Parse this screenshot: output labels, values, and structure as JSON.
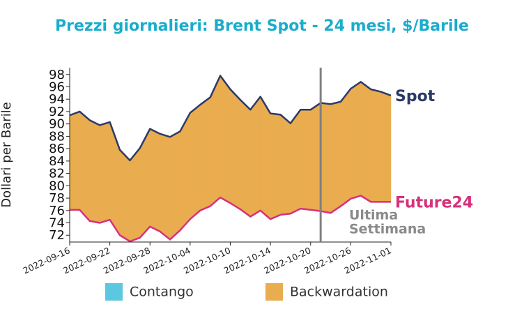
{
  "chart_data": {
    "type": "line",
    "title": "Prezzi giornalieri: Brent Spot - 24 mesi, $/Barile",
    "y_label": "Dollari per Barile",
    "categories": [
      "2022-09-16",
      null,
      null,
      null,
      "2022-09-22",
      null,
      null,
      null,
      "2022-09-28",
      null,
      null,
      null,
      "2022-10-04",
      null,
      null,
      null,
      "2022-10-10",
      null,
      null,
      null,
      "2022-10-14",
      null,
      null,
      null,
      "2022-10-20",
      null,
      null,
      null,
      "2022-10-26",
      null,
      null,
      null,
      "2022-11-01"
    ],
    "series": [
      {
        "name": "Spot",
        "color": "#2b3a67",
        "values": [
          91.4,
          92.0,
          90.6,
          89.8,
          90.3,
          85.8,
          84.1,
          86.1,
          89.2,
          88.4,
          87.9,
          88.8,
          91.8,
          93.1,
          94.3,
          97.8,
          95.6,
          93.9,
          92.3,
          94.4,
          91.7,
          91.5,
          90.1,
          92.3,
          92.3,
          93.4,
          93.2,
          93.6,
          95.7,
          96.8,
          95.6,
          95.2,
          94.6
        ]
      },
      {
        "name": "Future24",
        "color": "#d6317a",
        "values": [
          76.1,
          76.1,
          74.3,
          74.0,
          74.5,
          72.0,
          71.0,
          71.6,
          73.4,
          72.6,
          71.3,
          72.8,
          74.6,
          76.0,
          76.7,
          78.1,
          77.2,
          76.2,
          75.0,
          76.0,
          74.6,
          75.3,
          75.5,
          76.3,
          76.1,
          75.9,
          75.6,
          76.7,
          77.9,
          78.4,
          77.4,
          77.4,
          77.4
        ]
      }
    ],
    "fill_legend": [
      {
        "name": "Contango",
        "color": "#5bc8e0"
      },
      {
        "name": "Backwardation",
        "color": "#e9ac4e"
      }
    ],
    "vline_index": 25,
    "annotation": [
      "Ultima",
      "Settimana"
    ],
    "ylim": [
      70.9,
      99.1
    ],
    "yticks": [
      72,
      74,
      76,
      78,
      80,
      82,
      84,
      86,
      88,
      90,
      92,
      94,
      96,
      98
    ]
  }
}
